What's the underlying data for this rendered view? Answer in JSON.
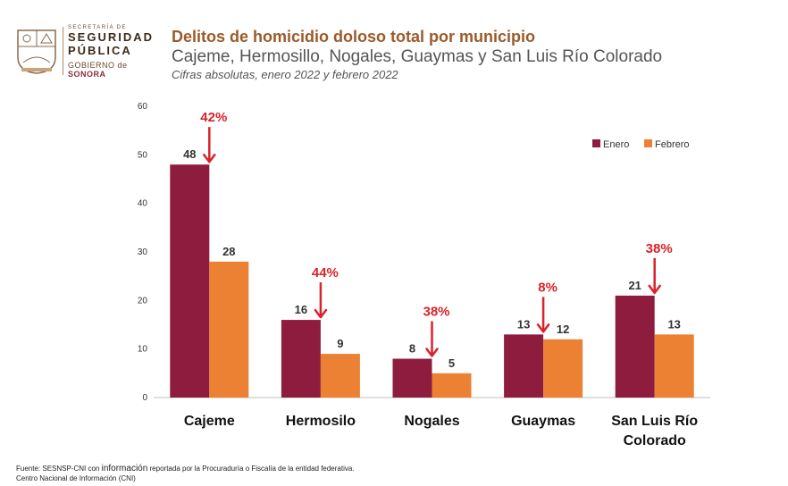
{
  "logo": {
    "line1": "SECRETARÍA DE",
    "line2": "SEGURIDAD",
    "line3": "PÚBLICA",
    "gob_prefix": "GOBIERNO",
    "gob_de": "de",
    "gob_state": "SONORA",
    "seal_name": "sonora-seal-icon"
  },
  "header": {
    "title": "Delitos de homicidio doloso total por municipio",
    "subtitle": "Cajeme, Hermosillo, Nogales, Guaymas y San Luis Río Colorado",
    "note": "Cifras absolutas, enero 2022 y febrero 2022"
  },
  "footer": {
    "line1_a": "Fuente: SESNSP-CNI con ",
    "line1_big": "información",
    "line1_b": " reportada por la Procuraduría o Fiscalía de la entidad federativa.",
    "line2": "Centro Nacional de Información (CNI)"
  },
  "colors": {
    "enero": "#8e1c3e",
    "febrero": "#ec8033",
    "arrow": "#d9232a",
    "title": "#9b5a2a"
  },
  "chart_data": {
    "type": "bar",
    "title": "Delitos de homicidio doloso total por municipio",
    "categories": [
      "Cajeme",
      "Hermosilo",
      "Nogales",
      "Guaymas",
      "San Luis Río Colorado"
    ],
    "category_lines": [
      [
        "Cajeme"
      ],
      [
        "Hermosilo"
      ],
      [
        "Nogales"
      ],
      [
        "Guaymas"
      ],
      [
        "San Luis Río",
        "Colorado"
      ]
    ],
    "series": [
      {
        "name": "Enero",
        "values": [
          48,
          16,
          8,
          13,
          21
        ]
      },
      {
        "name": "Febrero",
        "values": [
          28,
          9,
          5,
          12,
          13
        ]
      }
    ],
    "annotations": [
      "42%",
      "44%",
      "38%",
      "8%",
      "38%"
    ],
    "ylim": [
      0,
      60
    ],
    "yticks": [
      0,
      10,
      20,
      30,
      40,
      50,
      60
    ],
    "grid": false,
    "legend_position": "top-right"
  }
}
